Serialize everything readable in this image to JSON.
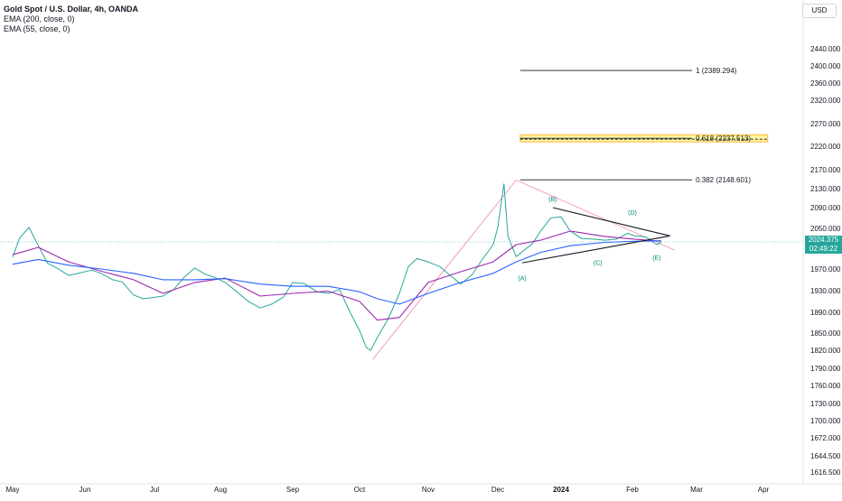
{
  "header": {
    "symbol_line": "Gold Spot / U.S. Dollar, 4h, OANDA",
    "indicators": [
      "EMA (200, close, 0)",
      "EMA (55, close, 0)"
    ],
    "currency": "USD"
  },
  "price_badge": {
    "price": "2024.375",
    "countdown": "02:49:22"
  },
  "chart_data": {
    "type": "line",
    "title": "Gold Spot / U.S. Dollar, 4h, OANDA",
    "xlabel": "",
    "ylabel": "",
    "x_ticks": [
      "May",
      "Jun",
      "Jul",
      "Aug",
      "Sep",
      "Oct",
      "Nov",
      "Dec",
      "2024",
      "Feb",
      "Mar",
      "Apr"
    ],
    "y_ticks": [
      "2440.000",
      "2400.000",
      "2360.000",
      "2320.000",
      "2270.000",
      "2220.000",
      "2170.000",
      "2130.000",
      "2090.000",
      "2050.000",
      "2010.000",
      "1970.000",
      "1930.000",
      "1890.000",
      "1850.000",
      "1820.000",
      "1790.000",
      "1760.000",
      "1730.000",
      "1700.000",
      "1672.000",
      "1644.500",
      "1616.500"
    ],
    "ylim": [
      1616.5,
      2440
    ],
    "y_scale": "log",
    "grid": false,
    "current_price": 2024.375,
    "series": [
      {
        "name": "XAU/USD",
        "color": "#26a69a",
        "x": [
          "2023-05-01",
          "2023-05-04",
          "2023-05-08",
          "2023-05-12",
          "2023-05-16",
          "2023-05-20",
          "2023-05-25",
          "2023-05-30",
          "2023-06-04",
          "2023-06-08",
          "2023-06-13",
          "2023-06-17",
          "2023-06-22",
          "2023-06-26",
          "2023-06-30",
          "2023-07-05",
          "2023-07-10",
          "2023-07-15",
          "2023-07-20",
          "2023-07-25",
          "2023-07-29",
          "2023-08-03",
          "2023-08-08",
          "2023-08-13",
          "2023-08-18",
          "2023-08-23",
          "2023-08-28",
          "2023-09-01",
          "2023-09-06",
          "2023-09-12",
          "2023-09-17",
          "2023-09-22",
          "2023-09-27",
          "2023-10-01",
          "2023-10-04",
          "2023-10-06",
          "2023-10-09",
          "2023-10-14",
          "2023-10-19",
          "2023-10-23",
          "2023-10-27",
          "2023-11-01",
          "2023-11-06",
          "2023-11-10",
          "2023-11-15",
          "2023-11-20",
          "2023-11-24",
          "2023-11-29",
          "2023-12-01",
          "2023-12-04",
          "2023-12-06",
          "2023-12-10",
          "2023-12-14",
          "2023-12-18",
          "2023-12-22",
          "2023-12-27",
          "2024-01-01",
          "2024-01-05",
          "2024-01-10",
          "2024-01-15",
          "2024-01-20",
          "2024-01-25",
          "2024-01-30",
          "2024-02-02",
          "2024-02-07",
          "2024-02-12",
          "2024-02-14"
        ],
        "values": [
          1995,
          2032,
          2052,
          2018,
          1982,
          1972,
          1958,
          1963,
          1968,
          1962,
          1950,
          1946,
          1922,
          1915,
          1917,
          1920,
          1932,
          1955,
          1972,
          1960,
          1955,
          1945,
          1928,
          1910,
          1898,
          1905,
          1918,
          1945,
          1943,
          1928,
          1925,
          1932,
          1888,
          1855,
          1825,
          1820,
          1842,
          1878,
          1925,
          1975,
          1992,
          1985,
          1975,
          1960,
          1942,
          1960,
          1988,
          2020,
          2052,
          2140,
          2035,
          1996,
          2010,
          2022,
          2045,
          2070,
          2072,
          2045,
          2031,
          2030,
          2028,
          2030,
          2041,
          2036,
          2034,
          2020,
          2024
        ]
      },
      {
        "name": "EMA (55, close, 0)",
        "color": "#9c27b0",
        "x": [
          "2023-05-01",
          "2023-05-12",
          "2023-05-25",
          "2023-06-08",
          "2023-06-22",
          "2023-07-05",
          "2023-07-20",
          "2023-08-03",
          "2023-08-18",
          "2023-09-01",
          "2023-09-17",
          "2023-10-01",
          "2023-10-09",
          "2023-10-19",
          "2023-11-01",
          "2023-11-15",
          "2023-11-29",
          "2023-12-10",
          "2023-12-22",
          "2024-01-05",
          "2024-01-20",
          "2024-02-02",
          "2024-02-14"
        ],
        "values": [
          2000,
          2015,
          1985,
          1966,
          1950,
          1925,
          1945,
          1953,
          1920,
          1925,
          1929,
          1910,
          1875,
          1880,
          1945,
          1965,
          1985,
          2020,
          2028,
          2045,
          2035,
          2030,
          2026
        ]
      },
      {
        "name": "EMA (200, close, 0)",
        "color": "#2962ff",
        "x": [
          "2023-05-01",
          "2023-05-12",
          "2023-05-25",
          "2023-06-08",
          "2023-06-22",
          "2023-07-05",
          "2023-07-20",
          "2023-08-03",
          "2023-08-18",
          "2023-09-01",
          "2023-09-17",
          "2023-10-01",
          "2023-10-09",
          "2023-10-19",
          "2023-11-01",
          "2023-11-15",
          "2023-11-29",
          "2023-12-10",
          "2023-12-22",
          "2024-01-05",
          "2024-01-20",
          "2024-02-02",
          "2024-02-14"
        ],
        "values": [
          1980,
          1990,
          1978,
          1970,
          1962,
          1950,
          1950,
          1952,
          1942,
          1938,
          1938,
          1928,
          1915,
          1905,
          1925,
          1945,
          1962,
          1985,
          2005,
          2018,
          2024,
          2026,
          2027
        ]
      }
    ],
    "fib_levels": [
      {
        "ratio": "1",
        "price": 2389.294,
        "label": "1 (2389.294)"
      },
      {
        "ratio": "0.618",
        "price": 2237.513,
        "label": "0.618 (2237.513)",
        "highlighted": true
      },
      {
        "ratio": "0.382",
        "price": 2148.601,
        "label": "0.382 (2148.601)"
      }
    ],
    "wave_labels": [
      {
        "label": "(A)",
        "date": "2023-12-13",
        "price": 1973
      },
      {
        "label": "(B)",
        "date": "2023-12-28",
        "price": 2088
      },
      {
        "label": "(C)",
        "date": "2024-01-17",
        "price": 2005
      },
      {
        "label": "(D)",
        "date": "2024-02-01",
        "price": 2062
      },
      {
        "label": "(E)",
        "date": "2024-02-12",
        "price": 2015
      }
    ],
    "triangle": {
      "upper": [
        {
          "date": "2023-12-28",
          "price": 2090
        },
        {
          "date": "2024-02-18",
          "price": 2036
        }
      ],
      "lower": [
        {
          "date": "2023-12-13",
          "price": 1983
        },
        {
          "date": "2024-02-18",
          "price": 2036
        }
      ]
    },
    "trendline": [
      {
        "date": "2023-10-07",
        "price": 1805
      },
      {
        "date": "2023-12-10",
        "price": 2148
      }
    ]
  }
}
